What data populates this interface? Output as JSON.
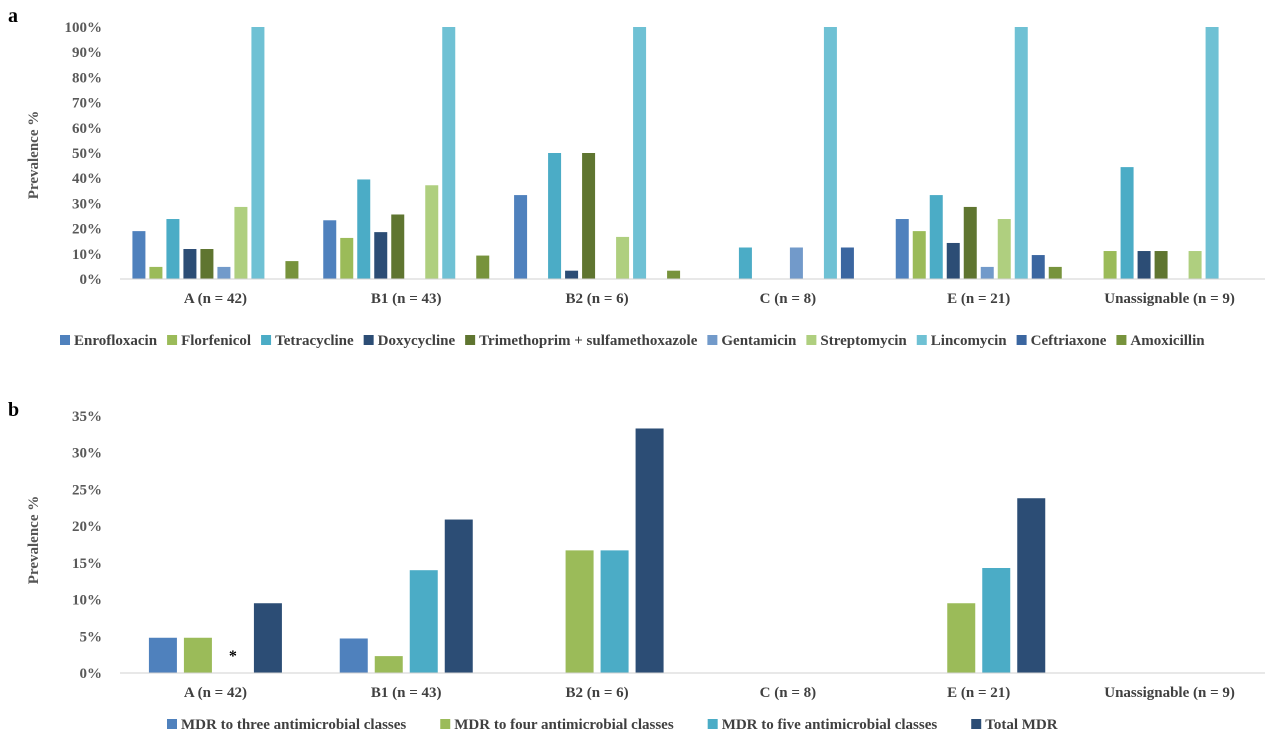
{
  "panels": [
    {
      "label": "a",
      "ylabel": "Prevalence %",
      "yticks": [
        "0%",
        "10%",
        "20%",
        "30%",
        "40%",
        "50%",
        "60%",
        "70%",
        "80%",
        "90%",
        "100%"
      ],
      "legend": [
        "Enrofloxacin",
        "Florfenicol",
        "Tetracycline",
        "Doxycycline",
        "Trimethoprim + sulfamethoxazole",
        "Gentamicin",
        "Streptomycin",
        "Lincomycin",
        "Ceftriaxone",
        "Amoxicillin"
      ]
    },
    {
      "label": "b",
      "ylabel": "Prevalence %",
      "yticks": [
        "0%",
        "5%",
        "10%",
        "15%",
        "20%",
        "25%",
        "30%",
        "35%"
      ],
      "legend": [
        "MDR to three antimicrobial classes",
        "MDR to four antimicrobial classes",
        "MDR to five antimicrobial classes",
        "Total MDR"
      ],
      "annotation": "*"
    }
  ],
  "chart_data": [
    {
      "type": "bar",
      "title": "",
      "xlabel": "",
      "ylabel": "Prevalence %",
      "ylim": [
        0,
        100
      ],
      "grid": false,
      "legend_position": "bottom",
      "categories": [
        "A (n = 42)",
        "B1 (n = 43)",
        "B2 (n = 6)",
        "C (n = 8)",
        "E (n = 21)",
        "Unassignable (n = 9)"
      ],
      "series": [
        {
          "name": "Enrofloxacin",
          "color": "#4f81bd",
          "values": [
            19,
            23.3,
            33.3,
            0,
            23.8,
            0
          ]
        },
        {
          "name": "Florfenicol",
          "color": "#9bbb59",
          "values": [
            4.8,
            16.3,
            0,
            0,
            19,
            11.1
          ]
        },
        {
          "name": "Tetracycline",
          "color": "#4bacc6",
          "values": [
            23.8,
            39.5,
            50,
            12.5,
            33.3,
            44.4
          ]
        },
        {
          "name": "Doxycycline",
          "color": "#2c4d75",
          "values": [
            11.9,
            18.6,
            3.3,
            0,
            14.3,
            11.1
          ]
        },
        {
          "name": "Trimethoprim + sulfamethoxazole",
          "color": "#5f7530",
          "values": [
            11.9,
            25.6,
            50,
            0,
            28.6,
            11.1
          ]
        },
        {
          "name": "Gentamicin",
          "color": "#729aca",
          "values": [
            4.8,
            0,
            0,
            12.5,
            4.8,
            0
          ]
        },
        {
          "name": "Streptomycin",
          "color": "#afcf7f",
          "values": [
            28.6,
            37.2,
            16.7,
            0,
            23.8,
            11.1
          ]
        },
        {
          "name": "Lincomycin",
          "color": "#6fc1d4",
          "values": [
            100,
            100,
            100,
            100,
            100,
            100
          ]
        },
        {
          "name": "Ceftriaxone",
          "color": "#3b66a0",
          "values": [
            0,
            0,
            0,
            12.5,
            9.5,
            0
          ]
        },
        {
          "name": "Amoxicillin",
          "color": "#77933c",
          "values": [
            7.1,
            9.3,
            3.3,
            0,
            4.8,
            0
          ]
        }
      ]
    },
    {
      "type": "bar",
      "title": "",
      "xlabel": "",
      "ylabel": "Prevalence %",
      "ylim": [
        0,
        35
      ],
      "grid": false,
      "legend_position": "bottom",
      "categories": [
        "A (n = 42)",
        "B1 (n = 43)",
        "B2 (n = 6)",
        "C (n = 8)",
        "E (n = 21)",
        "Unassignable (n = 9)"
      ],
      "series": [
        {
          "name": "MDR to three antimicrobial classes",
          "color": "#4f81bd",
          "values": [
            4.8,
            4.7,
            0,
            0,
            0,
            0
          ]
        },
        {
          "name": "MDR to four antimicrobial classes",
          "color": "#9bbb59",
          "values": [
            4.8,
            2.3,
            16.7,
            0,
            9.5,
            0
          ]
        },
        {
          "name": "MDR to five antimicrobial classes",
          "color": "#4bacc6",
          "values": [
            0,
            14.0,
            16.7,
            0,
            14.3,
            0
          ]
        },
        {
          "name": "Total MDR",
          "color": "#2c4d75",
          "values": [
            9.5,
            20.9,
            33.3,
            0,
            23.8,
            0
          ]
        }
      ],
      "annotations": [
        {
          "category": "A (n = 42)",
          "series": "MDR to five antimicrobial classes",
          "text": "*"
        }
      ]
    }
  ]
}
